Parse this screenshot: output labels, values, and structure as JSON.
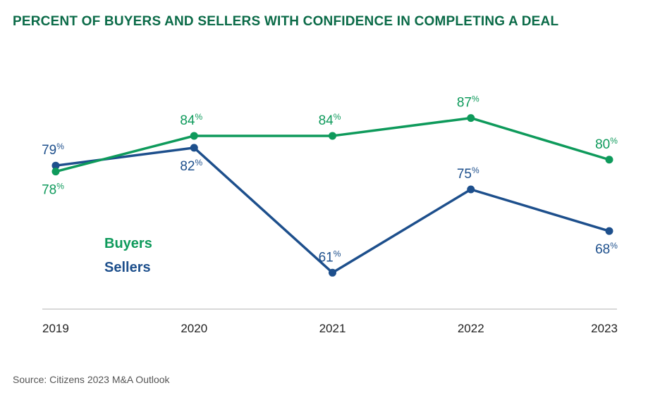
{
  "title": "PERCENT OF BUYERS AND SELLERS WITH CONFIDENCE IN COMPLETING A DEAL",
  "source": "Source: Citizens 2023 M&A Outlook",
  "colors": {
    "buyers": "#0e9a5b",
    "sellers": "#1d4f8c",
    "title": "#0b6b48",
    "axis": "#cccccc"
  },
  "chart_data": {
    "type": "line",
    "title": "PERCENT OF BUYERS AND SELLERS WITH CONFIDENCE IN COMPLETING A DEAL",
    "x": [
      "2019",
      "2020",
      "2021",
      "2022",
      "2023"
    ],
    "ylim": [
      55,
      95
    ],
    "grid": false,
    "legend": "left-inside",
    "series": [
      {
        "name": "Buyers",
        "values": [
          78,
          84,
          84,
          87,
          80
        ],
        "labels": [
          "78",
          "84",
          "84",
          "87",
          "80"
        ],
        "label_pos": [
          "below",
          "above",
          "above",
          "above",
          "above"
        ]
      },
      {
        "name": "Sellers",
        "values": [
          79,
          82,
          61,
          75,
          68
        ],
        "labels": [
          "79",
          "82",
          "61",
          "75",
          "68"
        ],
        "label_pos": [
          "above",
          "below",
          "above",
          "above",
          "below"
        ]
      }
    ],
    "label_suffix": "%"
  }
}
